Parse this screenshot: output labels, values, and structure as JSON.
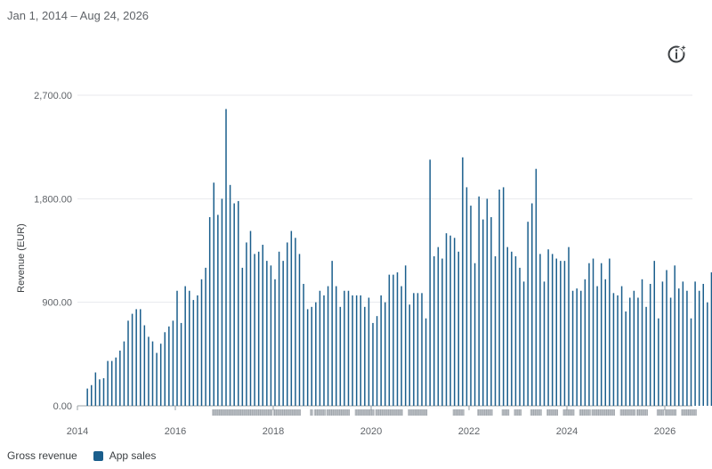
{
  "date_range": "Jan 1, 2014 – Aug 24, 2026",
  "info_icon": "info-sparkle-icon",
  "legend": {
    "title": "Gross revenue",
    "series_label": "App sales",
    "series_color": "#1a5e8c"
  },
  "chart_data": {
    "type": "bar",
    "ylabel": "Revenue (EUR)",
    "xlabel": "",
    "ylim": [
      0,
      2700
    ],
    "yticks": [
      0,
      900,
      1800,
      2700
    ],
    "ytick_labels": [
      "0.00",
      "900.00",
      "1,800.00",
      "2,700.00"
    ],
    "xlim": [
      "2014-01",
      "2026-08"
    ],
    "xtick_labels": [
      "2014",
      "2016",
      "2018",
      "2020",
      "2022",
      "2024",
      "2026"
    ],
    "xtick_years": [
      2014,
      2016,
      2018,
      2020,
      2022,
      2024,
      2026
    ],
    "grid": true,
    "series": [
      {
        "name": "App sales",
        "start": "2014-02",
        "interval": "month",
        "values": [
          150,
          180,
          290,
          230,
          240,
          390,
          390,
          420,
          480,
          560,
          740,
          800,
          840,
          840,
          700,
          600,
          560,
          460,
          540,
          640,
          690,
          740,
          1000,
          720,
          1040,
          1000,
          920,
          960,
          1100,
          1200,
          1640,
          1940,
          1660,
          1800,
          2580,
          1920,
          1760,
          1780,
          1200,
          1420,
          1520,
          1320,
          1340,
          1400,
          1260,
          1220,
          1100,
          1340,
          1260,
          1420,
          1520,
          1460,
          1320,
          1060,
          840,
          860,
          900,
          1000,
          960,
          1040,
          1260,
          1040,
          860,
          1000,
          1000,
          960,
          960,
          960,
          860,
          940,
          720,
          780,
          960,
          900,
          1140,
          1140,
          1160,
          1040,
          1220,
          880,
          980,
          980,
          980,
          760,
          2140,
          1300,
          1380,
          1280,
          1500,
          1480,
          1460,
          1340,
          2160,
          1900,
          1740,
          1240,
          1820,
          1620,
          1800,
          1640,
          1300,
          1880,
          1900,
          1380,
          1340,
          1300,
          1200,
          1080,
          1600,
          1760,
          2060,
          1320,
          1080,
          1360,
          1320,
          1280,
          1260,
          1260,
          1380,
          1000,
          1020,
          1000,
          1100,
          1240,
          1280,
          1040,
          1240,
          1100,
          1280,
          980,
          960,
          1040,
          820,
          940,
          1000,
          940,
          1100,
          860,
          1060,
          1260,
          760,
          1080,
          1180,
          940,
          1220,
          1020,
          1080,
          1000,
          760,
          1080,
          1000,
          1060,
          900,
          1160,
          1240,
          1000,
          1280,
          900,
          1060,
          1300,
          1020,
          1160,
          870,
          1060,
          1320
        ]
      }
    ],
    "annotation_bands": [
      [
        "2016-09",
        "2018-00"
      ],
      [
        "2018-00",
        "2018-07"
      ],
      [
        "2018-09",
        "2018-10"
      ],
      [
        "2018-10",
        "2019-01"
      ],
      [
        "2019-01",
        "2019-07"
      ],
      [
        "2019-08",
        "2020-01"
      ],
      [
        "2020-01",
        "2020-08"
      ],
      [
        "2020-09",
        "2021-02"
      ],
      [
        "2021-08",
        "2021-11"
      ],
      [
        "2022-02",
        "2022-06"
      ],
      [
        "2022-08",
        "2022-10"
      ],
      [
        "2022-11",
        "2023-01"
      ],
      [
        "2023-03",
        "2023-06"
      ],
      [
        "2023-07",
        "2023-10"
      ],
      [
        "2023-11",
        "2024-02"
      ],
      [
        "2024-03",
        "2024-06"
      ],
      [
        "2024-06",
        "2024-12"
      ],
      [
        "2025-01",
        "2025-05"
      ],
      [
        "2025-05",
        "2025-08"
      ],
      [
        "2025-10",
        "2025-12"
      ],
      [
        "2025-12",
        "2026-03"
      ],
      [
        "2026-04",
        "2026-08"
      ]
    ]
  }
}
